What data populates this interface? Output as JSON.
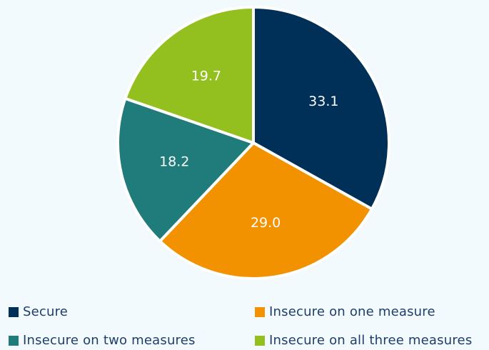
{
  "chart_data": {
    "type": "pie",
    "title": "",
    "slices": [
      {
        "label": "Secure",
        "value": 33.1,
        "value_label": "33.1",
        "color": "#003057"
      },
      {
        "label": "Insecure on one measure",
        "value": 29.0,
        "value_label": "29.0",
        "color": "#f29200"
      },
      {
        "label": "Insecure on two measures",
        "value": 18.2,
        "value_label": "18.2",
        "color": "#207b7b"
      },
      {
        "label": "Insecure on all three measures",
        "value": 19.7,
        "value_label": "19.7",
        "color": "#93c01f"
      }
    ],
    "legend_placement": "bottom",
    "start": "12 o'clock",
    "direction": "clockwise"
  },
  "legend": {
    "items": [
      {
        "label": "Secure",
        "color": "#003057"
      },
      {
        "label": "Insecure on one measure",
        "color": "#f29200"
      },
      {
        "label": "Insecure on two measures",
        "color": "#207b7b"
      },
      {
        "label": "Insecure on all three measures",
        "color": "#93c01f"
      }
    ]
  }
}
